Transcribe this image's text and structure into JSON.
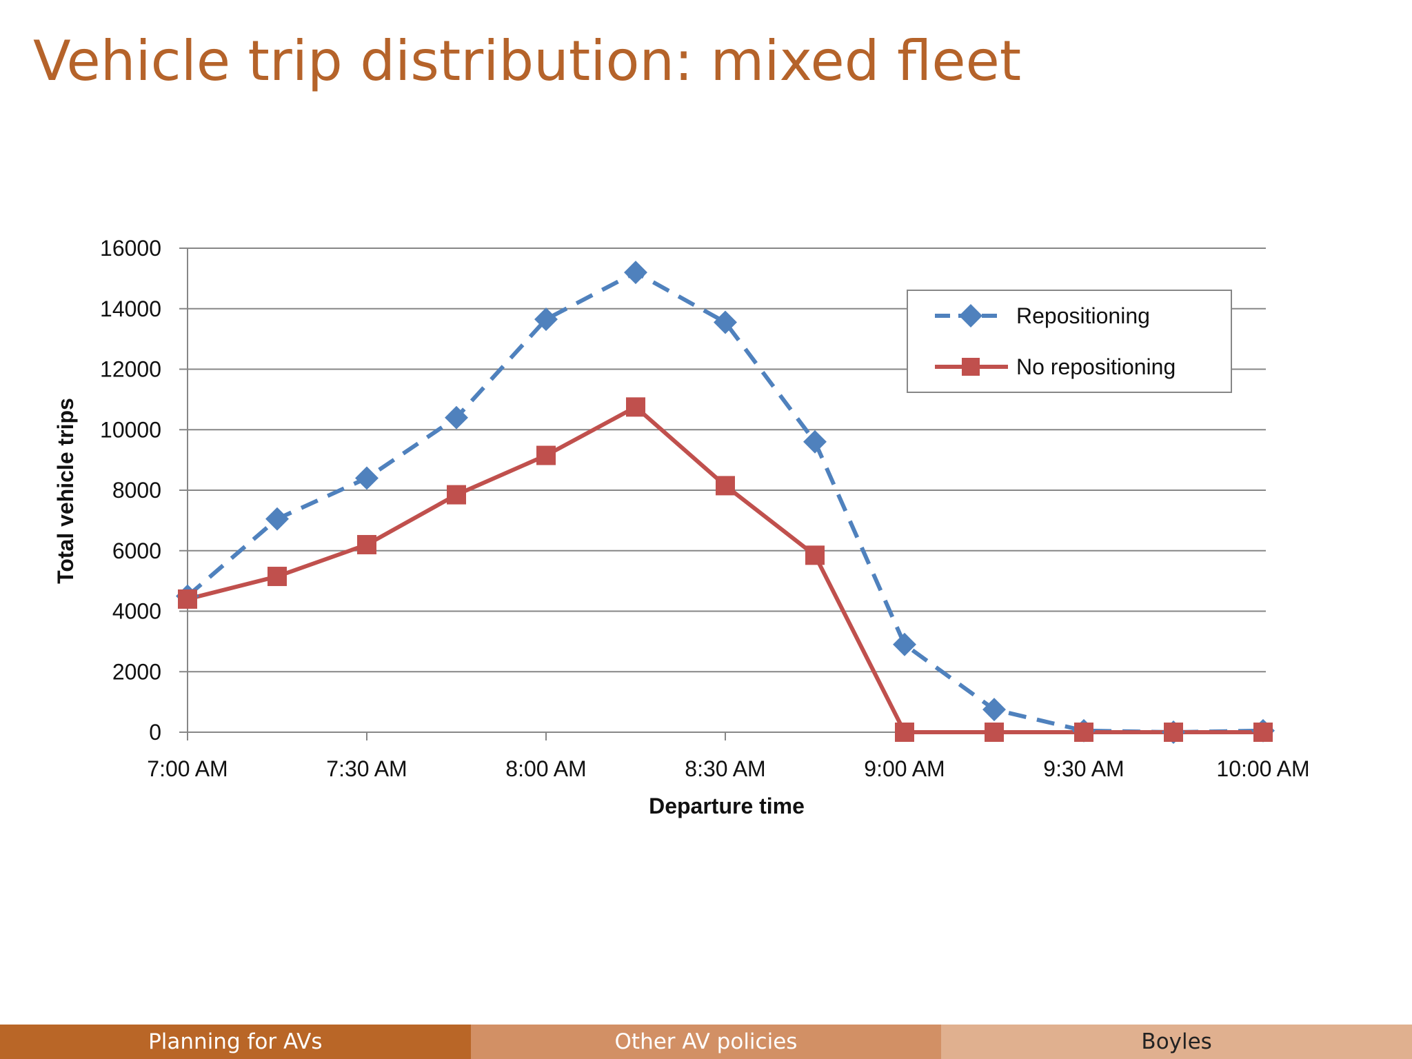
{
  "slide": {
    "title": "Vehicle trip distribution: mixed fleet"
  },
  "footer": {
    "left": "Planning for AVs",
    "center": "Other AV policies",
    "right": "Boyles"
  },
  "colors": {
    "title": "#b5632a",
    "repositioning": "#4f81bd",
    "no_repositioning": "#c0504d",
    "gridline": "#868686"
  },
  "chart_data": {
    "type": "line",
    "title": "",
    "xlabel": "Departure time",
    "ylabel": "Total vehicle trips",
    "ylim": [
      0,
      16000
    ],
    "y_ticks": [
      "0",
      "2000",
      "4000",
      "6000",
      "8000",
      "10000",
      "12000",
      "14000",
      "16000"
    ],
    "x": [
      "7:00 AM",
      "7:15 AM",
      "7:30 AM",
      "7:45 AM",
      "8:00 AM",
      "8:15 AM",
      "8:30 AM",
      "8:45 AM",
      "9:00 AM",
      "9:15 AM",
      "9:30 AM",
      "9:45 AM",
      "10:00 AM"
    ],
    "x_tick_labels": [
      "7:00 AM",
      "7:30 AM",
      "8:00 AM",
      "8:30 AM",
      "9:00 AM",
      "9:30 AM",
      "10:00 AM"
    ],
    "legend_position": "top-right",
    "grid": true,
    "series": [
      {
        "name": "Repositioning",
        "style": "dashed",
        "marker": "diamond",
        "values": [
          4500,
          7050,
          8400,
          10400,
          13650,
          15200,
          13550,
          9600,
          2900,
          750,
          50,
          0,
          50
        ]
      },
      {
        "name": "No repositioning",
        "style": "solid",
        "marker": "square",
        "values": [
          4400,
          5150,
          6200,
          7850,
          9150,
          10750,
          8150,
          5850,
          0,
          0,
          0,
          0,
          0
        ]
      }
    ]
  }
}
